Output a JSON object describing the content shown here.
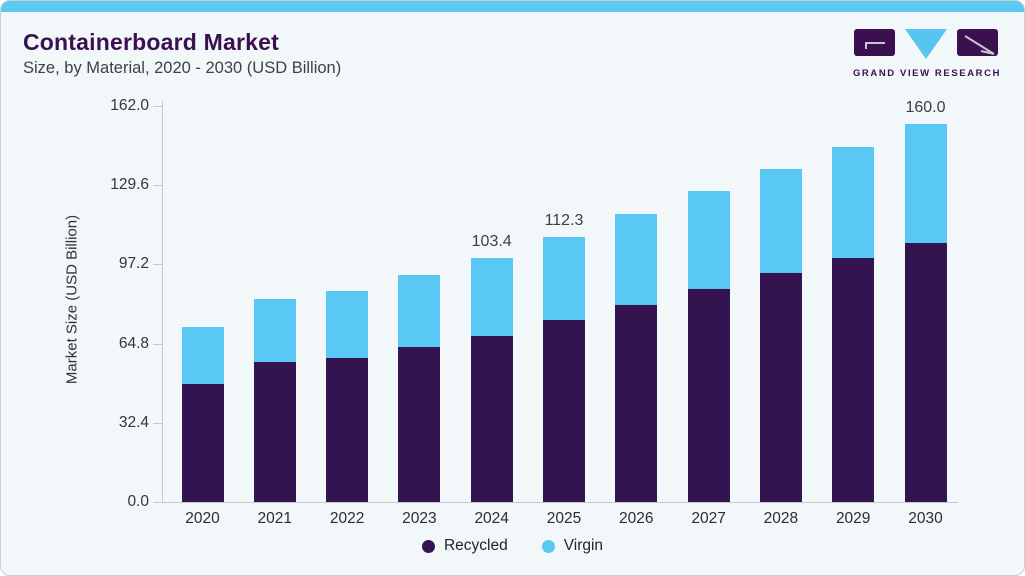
{
  "header": {
    "title": "Containerboard Market",
    "subtitle": "Size, by Material, 2020 - 2030 (USD Billion)"
  },
  "logo": {
    "text": "GRAND VIEW RESEARCH",
    "purple": "#3a1050",
    "blue": "#56c6f0"
  },
  "colors": {
    "accent_strip": "#5dc9f2",
    "card_background": "#f2f7fa",
    "axis": "#c2cad2",
    "recycled": "#331450",
    "virgin": "#5ac8f5"
  },
  "chart_data": {
    "type": "bar",
    "stacked": true,
    "title": "Containerboard Market Size, by Material, 2020 - 2030 (USD Billion)",
    "categories": [
      "2020",
      "2021",
      "2022",
      "2023",
      "2024",
      "2025",
      "2026",
      "2027",
      "2028",
      "2029",
      "2030"
    ],
    "series": [
      {
        "name": "Recycled",
        "color": "#331450",
        "values": [
          50.1,
          59.5,
          61.0,
          65.8,
          70.4,
          77.0,
          83.4,
          90.2,
          96.9,
          103.3,
          109.7
        ]
      },
      {
        "name": "Virgin",
        "color": "#5ac8f5",
        "values": [
          24.2,
          26.9,
          28.5,
          30.5,
          33.0,
          35.3,
          38.4,
          41.4,
          44.1,
          47.2,
          50.3
        ]
      }
    ],
    "totals": [
      74.3,
      86.4,
      89.5,
      96.3,
      103.4,
      112.3,
      121.8,
      131.6,
      141.0,
      150.5,
      160.0
    ],
    "total_labels": {
      "2024": "103.4",
      "2025": "112.3",
      "2030": "160.0"
    },
    "xlabel": "",
    "ylabel": "Market Size (USD Billion)",
    "yticks": [
      0.0,
      32.4,
      64.8,
      97.2,
      129.6,
      162.0
    ],
    "ytick_labels": [
      "0.0",
      "32.4",
      "64.8",
      "97.2",
      "129.6",
      "162.0"
    ],
    "ylim": [
      0,
      162.0
    ],
    "grid": false,
    "legend_position": "bottom"
  }
}
